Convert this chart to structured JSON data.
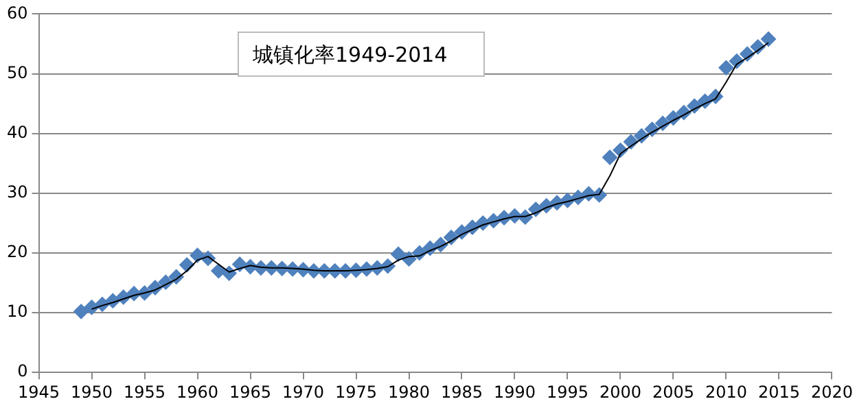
{
  "chart_data": {
    "type": "scatter",
    "title": "城镇化率1949-2014",
    "marker": "diamond",
    "grid": "y",
    "legend": false,
    "xlim": [
      1945,
      2020
    ],
    "xticks": [
      1945,
      1950,
      1955,
      1960,
      1965,
      1970,
      1975,
      1980,
      1985,
      1990,
      1995,
      2000,
      2005,
      2010,
      2015,
      2020
    ],
    "ylim": [
      0,
      60
    ],
    "yticks": [
      0,
      10,
      20,
      30,
      40,
      50,
      60
    ],
    "x": [
      1949,
      1950,
      1951,
      1952,
      1953,
      1954,
      1955,
      1956,
      1957,
      1958,
      1959,
      1960,
      1961,
      1962,
      1963,
      1964,
      1965,
      1966,
      1967,
      1968,
      1969,
      1970,
      1971,
      1972,
      1973,
      1974,
      1975,
      1976,
      1977,
      1978,
      1979,
      1980,
      1981,
      1982,
      1983,
      1984,
      1985,
      1986,
      1987,
      1988,
      1989,
      1990,
      1991,
      1992,
      1993,
      1994,
      1995,
      1996,
      1997,
      1998,
      1999,
      2000,
      2001,
      2002,
      2003,
      2004,
      2005,
      2006,
      2007,
      2008,
      2009,
      2010,
      2011,
      2012,
      2013,
      2014
    ],
    "series": [
      {
        "color": "#4f81bd",
        "values": [
          10.2,
          10.9,
          11.4,
          12.0,
          12.6,
          13.2,
          13.3,
          14.2,
          15.1,
          16.0,
          18.0,
          19.6,
          19.1,
          17.0,
          16.6,
          18.1,
          17.7,
          17.5,
          17.5,
          17.4,
          17.3,
          17.2,
          17.0,
          17.0,
          17.0,
          17.0,
          17.1,
          17.3,
          17.5,
          17.8,
          19.8,
          19.0,
          20.0,
          20.8,
          21.4,
          22.6,
          23.5,
          24.3,
          25.0,
          25.4,
          25.9,
          26.2,
          26.0,
          27.3,
          27.9,
          28.4,
          28.8,
          29.3,
          29.9,
          29.7,
          36.0,
          37.2,
          38.6,
          39.6,
          40.7,
          41.7,
          42.6,
          43.5,
          44.6,
          45.4,
          46.2,
          51.0,
          52.1,
          53.3,
          54.5,
          55.8
        ]
      },
      {
        "type": "line",
        "marker": "none",
        "color": "#000000",
        "x": [
          1950,
          1951,
          1952,
          1953,
          1954,
          1955,
          1956,
          1957,
          1958,
          1959,
          1960,
          1961,
          1962,
          1963,
          1964,
          1965,
          1966,
          1967,
          1968,
          1969,
          1970,
          1971,
          1972,
          1973,
          1974,
          1975,
          1976,
          1977,
          1978,
          1979,
          1980,
          1981,
          1982,
          1983,
          1984,
          1985,
          1986,
          1987,
          1988,
          1989,
          1990,
          1991,
          1992,
          1993,
          1994,
          1995,
          1996,
          1997,
          1998,
          1999,
          2000,
          2001,
          2002,
          2003,
          2004,
          2005,
          2006,
          2007,
          2008,
          2009,
          2010,
          2011,
          2012,
          2013,
          2014
        ],
        "values": [
          10.6,
          11.2,
          11.7,
          12.3,
          12.9,
          13.3,
          13.8,
          14.7,
          15.6,
          17.0,
          18.8,
          19.4,
          18.1,
          16.8,
          17.4,
          17.9,
          17.6,
          17.5,
          17.5,
          17.4,
          17.3,
          17.1,
          17.0,
          17.0,
          17.0,
          17.1,
          17.2,
          17.4,
          17.7,
          18.8,
          19.4,
          19.5,
          20.4,
          21.1,
          22.0,
          23.1,
          23.9,
          24.7,
          25.2,
          25.7,
          26.1,
          26.1,
          26.7,
          27.6,
          28.2,
          28.6,
          29.1,
          29.6,
          29.8,
          32.9,
          36.6,
          37.9,
          39.1,
          40.2,
          41.2,
          42.2,
          43.1,
          44.1,
          45.0,
          45.8,
          48.6,
          51.6,
          52.7,
          53.9,
          55.2
        ]
      }
    ]
  }
}
